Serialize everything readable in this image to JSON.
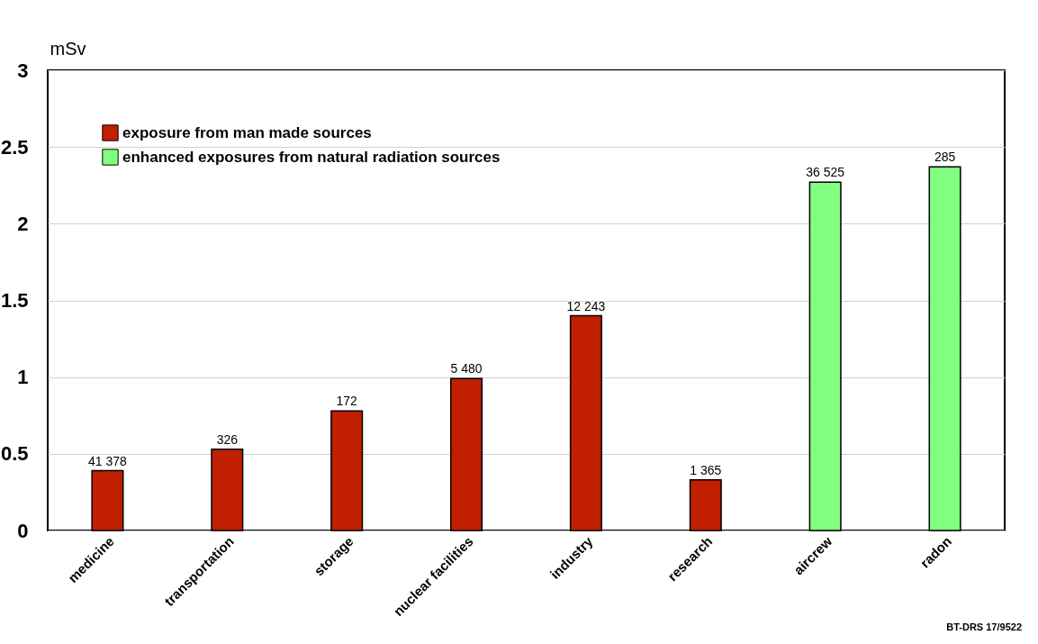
{
  "chart_data": {
    "type": "bar",
    "ylabel": "mSv",
    "categories": [
      "medicine",
      "transportation",
      "storage",
      "nuclear facilities",
      "industry",
      "research",
      "aircrew",
      "radon"
    ],
    "series": [
      {
        "name": "exposure from man made sources",
        "color": "#c02000",
        "values": [
          0.39,
          0.53,
          0.78,
          0.99,
          1.4,
          0.33,
          null,
          null
        ]
      },
      {
        "name": "enhanced exposures from natural radiation sources",
        "color": "#80ff80",
        "values": [
          null,
          null,
          null,
          null,
          null,
          null,
          2.27,
          2.37
        ]
      }
    ],
    "ylim": [
      0,
      3
    ],
    "yticks": [
      0,
      0.5,
      1,
      1.5,
      2,
      2.5,
      3
    ],
    "grid": "y",
    "legend": "top left",
    "annotations": [
      {
        "text": "41 378",
        "x": "medicine",
        "y": 0.39
      },
      {
        "text": "326",
        "x": "transportation",
        "y": 0.53
      },
      {
        "text": "172",
        "x": "storage",
        "y": 0.78
      },
      {
        "text": "5 480",
        "x": "nuclear facilities",
        "y": 0.99
      },
      {
        "text": "12 243",
        "x": "industry",
        "y": 1.4
      },
      {
        "text": "1 365",
        "x": "research",
        "y": 0.33
      },
      {
        "text": "36 525",
        "x": "aircrew",
        "y": 2.27
      },
      {
        "text": "285",
        "x": "radon",
        "y": 2.37
      },
      "BT-DRS 17/9522"
    ]
  }
}
